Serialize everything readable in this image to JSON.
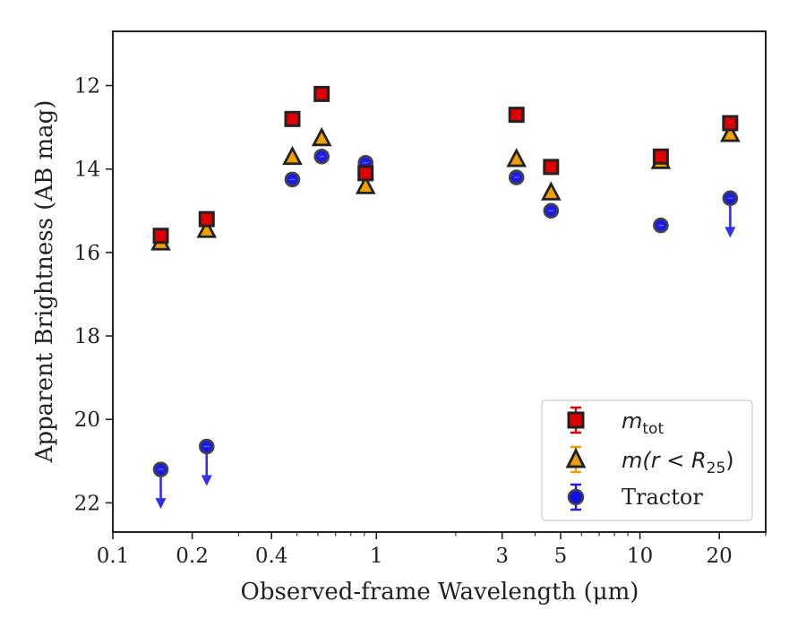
{
  "chart_data": {
    "type": "scatter",
    "xlabel": "Observed-frame Wavelength (μm)",
    "ylabel": "Apparent Brightness (AB mag)",
    "x_scale": "log",
    "xlim": [
      0.1,
      30
    ],
    "ylim": [
      22.7,
      10.7
    ],
    "y_inverted": true,
    "x_ticks": [
      0.1,
      0.2,
      0.4,
      1,
      3,
      5,
      10,
      20
    ],
    "x_tick_labels": [
      "0.1",
      "0.2",
      "0.4",
      "1",
      "3",
      "5",
      "10",
      "20"
    ],
    "y_ticks": [
      12,
      14,
      16,
      18,
      20,
      22
    ],
    "y_tick_labels": [
      "12",
      "14",
      "16",
      "18",
      "20",
      "22"
    ],
    "legend_placement": "bottom-right",
    "legend": {
      "mtot": {
        "main": "m",
        "sub": "tot"
      },
      "mr25": {
        "text": "m(r < R",
        "sub": "25",
        "close": ")"
      },
      "tractor": {
        "text": "Tractor"
      }
    },
    "series": [
      {
        "name": "m_tot",
        "marker": "square",
        "face_color": "#e00000",
        "edge_color": "#222222",
        "points": [
          {
            "x": 0.152,
            "y": 15.6
          },
          {
            "x": 0.227,
            "y": 15.2
          },
          {
            "x": 0.48,
            "y": 12.8
          },
          {
            "x": 0.62,
            "y": 12.2
          },
          {
            "x": 0.91,
            "y": 14.1
          },
          {
            "x": 3.4,
            "y": 12.7
          },
          {
            "x": 4.6,
            "y": 13.95
          },
          {
            "x": 12.0,
            "y": 13.7
          },
          {
            "x": 22.0,
            "y": 12.9
          }
        ]
      },
      {
        "name": "m(r < R25)",
        "marker": "triangle",
        "face_color": "#f0a000",
        "edge_color": "#222222",
        "points": [
          {
            "x": 0.152,
            "y": 15.75
          },
          {
            "x": 0.227,
            "y": 15.45
          },
          {
            "x": 0.48,
            "y": 13.7
          },
          {
            "x": 0.62,
            "y": 13.25
          },
          {
            "x": 0.91,
            "y": 14.4
          },
          {
            "x": 3.4,
            "y": 13.75
          },
          {
            "x": 4.6,
            "y": 14.55
          },
          {
            "x": 12.0,
            "y": 13.8
          },
          {
            "x": 22.0,
            "y": 13.15
          }
        ]
      },
      {
        "name": "Tractor",
        "marker": "circle",
        "face_color": "#1010e0",
        "edge_color": "#444444",
        "upper_limit_color": "#3030e8",
        "points": [
          {
            "x": 0.152,
            "y": 21.2,
            "upper_limit": true
          },
          {
            "x": 0.227,
            "y": 20.65,
            "upper_limit": true
          },
          {
            "x": 0.48,
            "y": 14.25
          },
          {
            "x": 0.62,
            "y": 13.7
          },
          {
            "x": 0.91,
            "y": 13.85
          },
          {
            "x": 3.4,
            "y": 14.2
          },
          {
            "x": 4.6,
            "y": 15.0
          },
          {
            "x": 12.0,
            "y": 15.35
          },
          {
            "x": 22.0,
            "y": 14.7,
            "upper_limit": true
          }
        ]
      }
    ]
  }
}
